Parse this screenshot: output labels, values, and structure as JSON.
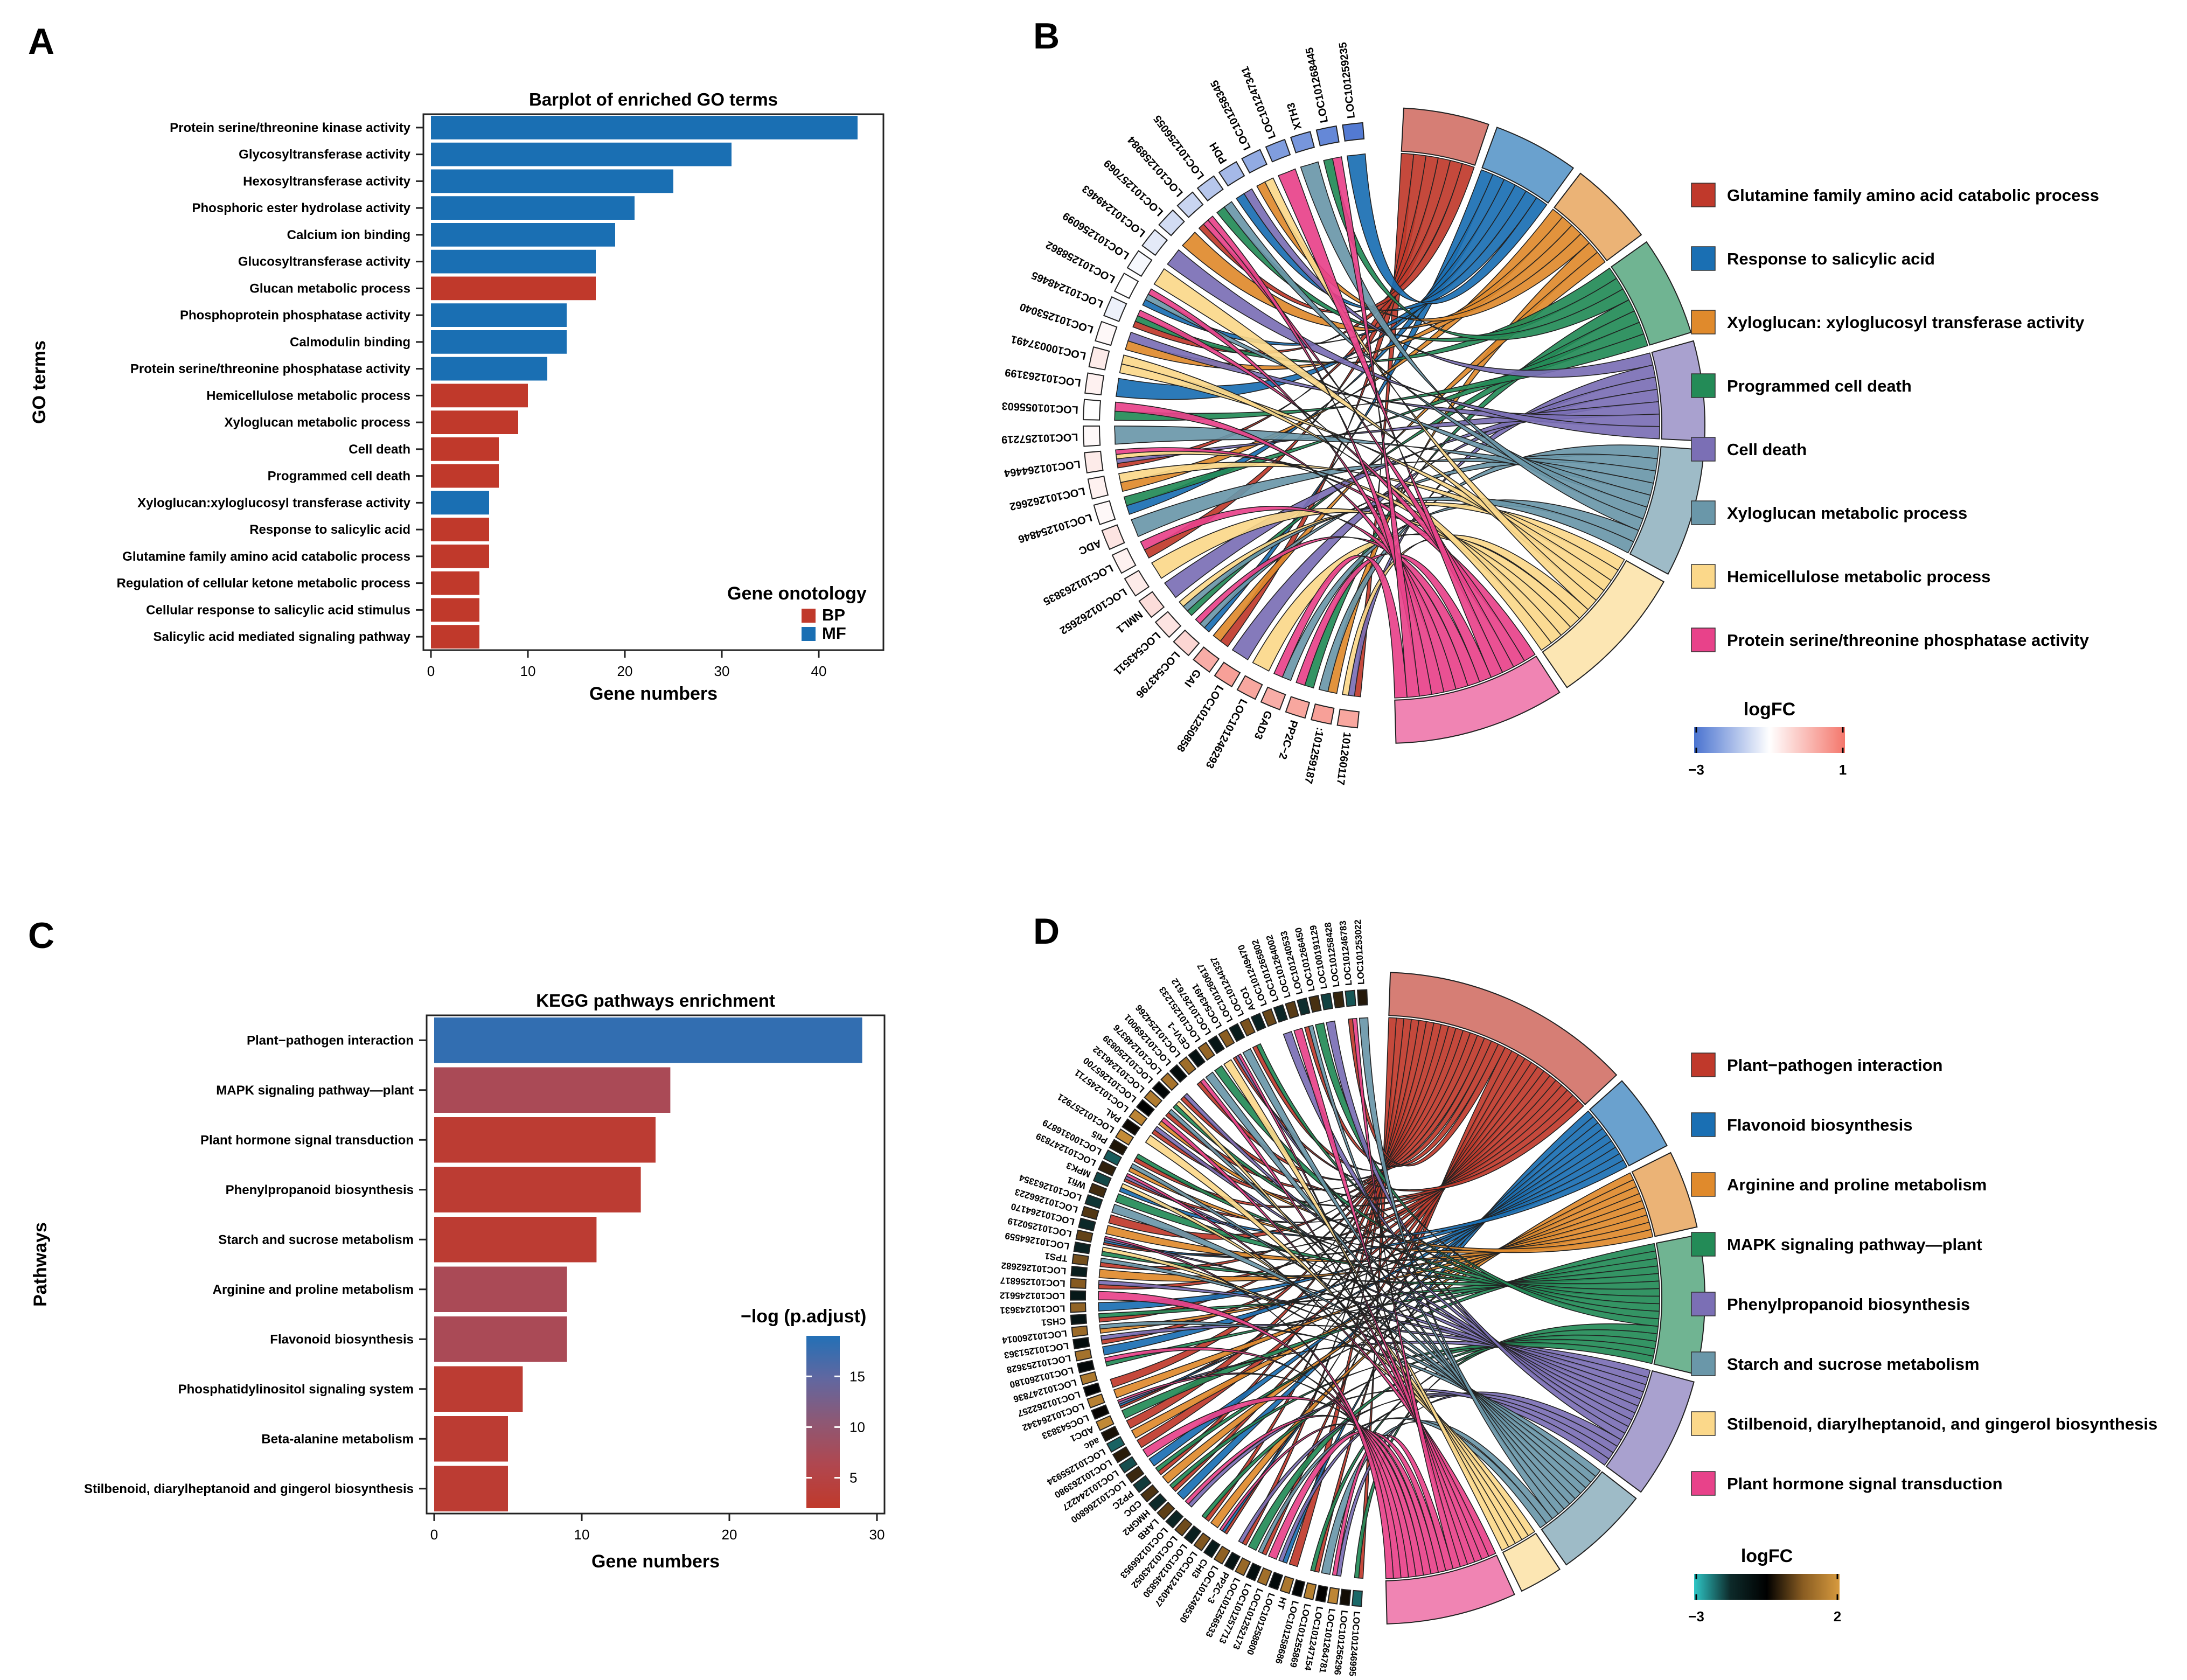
{
  "panels": {
    "A": "A",
    "B": "B",
    "C": "C",
    "D": "D"
  },
  "chart_data": [
    {
      "panel": "A",
      "type": "bar",
      "orientation": "horizontal",
      "title": "Barplot of enriched GO terms",
      "xlabel": "Gene numbers",
      "ylabel": "GO terms",
      "xlim": [
        0,
        45
      ],
      "xticks": [
        0,
        10,
        20,
        30,
        40
      ],
      "categories": [
        "Protein serine/threonine kinase activity",
        "Glycosyltransferase activity",
        "Hexosyltransferase activity",
        "Phosphoric ester hydrolase activity",
        "Calcium ion binding",
        "Glucosyltransferase activity",
        "Glucan metabolic process",
        "Phosphoprotein phosphatase activity",
        "Calmodulin binding",
        "Protein serine/threonine phosphatase activity",
        "Hemicellulose metabolic process",
        "Xyloglucan metabolic process",
        "Cell death",
        "Programmed cell death",
        "Xyloglucan:xyloglucosyl transferase activity",
        "Response to salicylic acid",
        "Glutamine family amino acid catabolic process",
        "Regulation of cellular ketone metabolic process",
        "Cellular response to salicylic acid stimulus",
        "Salicylic acid mediated signaling pathway"
      ],
      "values": [
        44,
        31,
        25,
        21,
        19,
        17,
        17,
        14,
        14,
        12,
        10,
        9,
        7,
        7,
        6,
        6,
        6,
        5,
        5,
        5
      ],
      "groups": [
        "MF",
        "MF",
        "MF",
        "MF",
        "MF",
        "MF",
        "BP",
        "MF",
        "MF",
        "MF",
        "BP",
        "BP",
        "BP",
        "BP",
        "MF",
        "BP",
        "BP",
        "BP",
        "BP",
        "BP"
      ],
      "legend": {
        "title": "Gene onotology",
        "items": [
          {
            "label": "BP",
            "color": "#c0392b"
          },
          {
            "label": "MF",
            "color": "#1a6fb3"
          }
        ],
        "position": "bottom-right"
      },
      "grid": false
    },
    {
      "panel": "B",
      "type": "chord",
      "terms": [
        {
          "label": "Glutamine family amino acid catabolic process",
          "color": "#c0392b",
          "genes": 6
        },
        {
          "label": "Response to salicylic acid",
          "color": "#1a6fb3",
          "genes": 6
        },
        {
          "label": "Xyloglucan: xyloglucosyl transferase activity",
          "color": "#e08a2c",
          "genes": 6
        },
        {
          "label": "Programmed cell death",
          "color": "#238b57",
          "genes": 7
        },
        {
          "label": "Cell death",
          "color": "#7b6fb5",
          "genes": 7
        },
        {
          "label": "Xyloglucan metabolic process",
          "color": "#6a97a9",
          "genes": 9
        },
        {
          "label": "Hemicellulose metabolic process",
          "color": "#fbd88a",
          "genes": 10
        },
        {
          "label": "Protein serine/threonine phosphatase activity",
          "color": "#e8428a",
          "genes": 12
        }
      ],
      "genes": [
        "101260117",
        ":101259187",
        "PP2C−2",
        "GAD3",
        "LOC101246293",
        "LOC101250858",
        "GAI",
        "LOC543796",
        "LOC543511",
        "NML1",
        "LOC101262652",
        "LOC101263835",
        "ADC",
        "LOC101254846",
        "LOC101262662",
        "LOC101264464",
        "LOC101257219",
        "LOC101055603",
        "LOC101263199",
        "LOC100037491",
        "LOC101253040",
        "LOC101248465",
        "LOC101258862",
        "LOC101256099",
        "LOC101249463",
        "LOC101257069",
        "LOC101258984",
        "LOC101256055",
        "PDH",
        "LOC101258345",
        "LOC101247341",
        "XTH3",
        "LOC101268445",
        "LOC101259235"
      ],
      "gene_logfc": [
        0.3,
        0.4,
        0.3,
        0.2,
        0.3,
        0.4,
        0.2,
        -0.4,
        -0.6,
        -0.5,
        -0.7,
        -0.8,
        -0.6,
        -0.9,
        -0.8,
        -0.7,
        -0.9,
        -1.0,
        -0.8,
        -0.7,
        -0.9,
        -1.2,
        -1.0,
        -1.1,
        -1.3,
        -1.5,
        -1.6,
        -1.8,
        -2.0,
        -2.2,
        -2.4,
        -2.5,
        -2.7,
        -2.9
      ],
      "logfc_legend": {
        "title": "logFC",
        "min_label": "−3",
        "max_label": "1",
        "colors": [
          "#4a73d0",
          "#ffffff",
          "#f4776c"
        ]
      }
    },
    {
      "panel": "C",
      "type": "bar",
      "orientation": "horizontal",
      "title": "KEGG pathways enrichment",
      "xlabel": "Gene numbers",
      "ylabel": "Pathways",
      "xlim": [
        0,
        30
      ],
      "xticks": [
        0,
        10,
        20,
        30
      ],
      "categories": [
        "Plant−pathogen interaction",
        "MAPK signaling pathway—plant",
        "Plant hormone signal transduction",
        "Phenylpropanoid biosynthesis",
        "Starch and sucrose metabolism",
        "Arginine and proline metabolism",
        "Flavonoid biosynthesis",
        "Phosphatidylinositol signaling system",
        "Beta-alanine metabolism",
        "Stilbenoid, diarylheptanoid and gingerol biosynthesis"
      ],
      "values": [
        29,
        16,
        15,
        14,
        11,
        9,
        9,
        6,
        5,
        5
      ],
      "neglog_padj": [
        18,
        7,
        3,
        3,
        3,
        7,
        7,
        3,
        3,
        3
      ],
      "legend": {
        "title": "−log (p.adjust)",
        "ticks": [
          "15",
          "10",
          "5"
        ],
        "tick_values": [
          15,
          10,
          5
        ],
        "range": [
          2,
          19
        ],
        "position": "right"
      },
      "grid": false
    },
    {
      "panel": "D",
      "type": "chord",
      "terms": [
        {
          "label": "Plant−pathogen interaction",
          "color": "#c0392b",
          "genes": 29
        },
        {
          "label": "Flavonoid biosynthesis",
          "color": "#1a6fb3",
          "genes": 9
        },
        {
          "label": "Arginine and proline metabolism",
          "color": "#e08a2c",
          "genes": 9
        },
        {
          "label": "MAPK signaling pathway—plant",
          "color": "#238b57",
          "genes": 16
        },
        {
          "label": "Phenylpropanoid biosynthesis",
          "color": "#7b6fb5",
          "genes": 14
        },
        {
          "label": "Starch and sucrose metabolism",
          "color": "#6a97a9",
          "genes": 11
        },
        {
          "label": "Stilbenoid, diarylheptanoid, and gingerol biosynthesis",
          "color": "#fbd88a",
          "genes": 5
        },
        {
          "label": "Plant hormone signal transduction",
          "color": "#e8428a",
          "genes": 15
        }
      ],
      "genes": [
        "LOC101246995",
        "LOC101256296",
        "LOC101264781",
        "LOC101247154",
        "LOC101255869",
        "LOC101258686",
        "HT",
        "LOC101258800",
        "LOC101252173",
        "LOC101257713",
        "LOC101256533",
        "PP2C−3",
        "LOC101249530",
        "CHI3",
        "LOC101244037",
        "LOC101245830",
        "LOC101243052",
        "LOC101266953",
        "LARB",
        "HMGR2",
        "CDC",
        "PP2C",
        "LOC101266800",
        "LOC101244227",
        "LOC101263980",
        "LOC101255934",
        "adc",
        "ADC1",
        "LOC543833",
        "LOC101264342",
        "LOC101262257",
        "LOC101247836",
        "LOC101260180",
        "LOC101253628",
        "LOC101251363",
        "LOC101260014",
        "CHS1",
        "LOC101243631",
        "LOC101245612",
        "LOC101256817",
        "LOC101262682",
        "TPS1",
        "LOC101264559",
        "LOC101250219",
        "LOC101264170",
        "LOC101266223",
        "LOC101263354",
        "Wfi1",
        "MPK3",
        "LOC101247839",
        "LOC100316879",
        "Pti5",
        "LOC101257921",
        "PAL",
        "LOC101245711",
        "LOC101265700",
        "LOC101246132",
        "LOC101250839",
        "LOC101248376",
        "LOC101269001",
        "LOC101254266",
        "CEVI−1",
        "LOC101251233",
        "LOC101267612",
        "LOC543491",
        "LOC101260617",
        "LOC101244337",
        "ACO1",
        "LOC101249470",
        "LOC101265802",
        "LOC101264002",
        "LOC101240533",
        "LOC101266450",
        "LOC100191129",
        "LOC101258428",
        "LOC101246783",
        "LOC101253022"
      ],
      "logfc_legend": {
        "title": "logFC",
        "min_label": "−3",
        "max_label": "2",
        "colors": [
          "#2ec6c6",
          "#0d2a2a",
          "#000000",
          "#8a5d22",
          "#d79a3e"
        ]
      }
    }
  ]
}
